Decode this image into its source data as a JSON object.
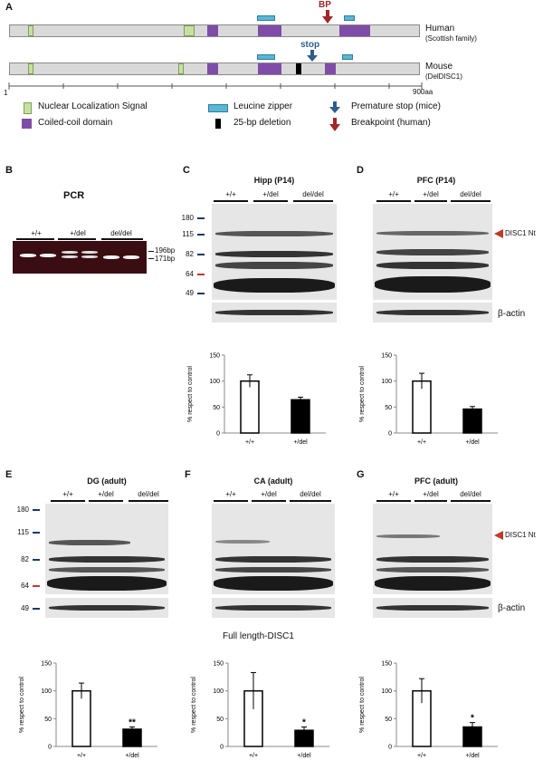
{
  "panels": {
    "a": "A",
    "b": "B",
    "c": "C",
    "d": "D",
    "e": "E",
    "f": "F",
    "g": "G"
  },
  "panelA": {
    "human_label": "Human",
    "human_sub": "(Scottish family)",
    "mouse_label": "Mouse",
    "mouse_sub": "(DelDISC1)",
    "bp_label": "BP",
    "stop_label": "stop",
    "scale_start": "1",
    "scale_end": "900aa",
    "legend": {
      "nls": "Nuclear Localization Signal",
      "cc": "Coiled-coil domain",
      "lz": "Leucine zipper",
      "del": "25-bp deletion",
      "stop": "Premature stop (mice)",
      "bp": "Breakpoint (human)"
    },
    "colors": {
      "nls": "#c6e0a4",
      "coiled_coil": "#7f4da8",
      "leucine_zipper": "#5bb7d4",
      "stop_arrow": "#2e5d8e",
      "bp_arrow": "#a0282a"
    }
  },
  "panelB": {
    "title": "PCR",
    "groups": [
      "+/+",
      "+/del",
      "del/del"
    ],
    "bands": [
      "196bp",
      "171bp"
    ]
  },
  "panelC": {
    "title": "Hipp (P14)",
    "groups": [
      "+/+",
      "+/del",
      "del/del"
    ],
    "markers": [
      "180",
      "115",
      "82",
      "64",
      "49"
    ]
  },
  "panelD": {
    "title": "PFC (P14)",
    "groups": [
      "+/+",
      "+/del",
      "del/del"
    ],
    "disc1_label": "DISC1 Nt",
    "actin_label": "β-actin"
  },
  "panelE": {
    "title": "DG (adult)",
    "groups": [
      "+/+",
      "+/del",
      "del/del"
    ],
    "markers": [
      "180",
      "115",
      "82",
      "64",
      "49"
    ]
  },
  "panelF": {
    "title": "CA (adult)",
    "groups": [
      "+/+",
      "+/del",
      "del/del"
    ],
    "subtitle": "Full length-DISC1"
  },
  "panelG": {
    "title": "PFC (adult)",
    "groups": [
      "+/+",
      "+/del",
      "del/del"
    ],
    "disc1_label": "DISC1 Nt",
    "actin_label": "β-actin"
  },
  "chart_data": [
    {
      "id": "C",
      "type": "bar",
      "categories": [
        "+/+",
        "+/del"
      ],
      "values": [
        100,
        64
      ],
      "errors": [
        12,
        5
      ],
      "ylabel": "% respect to control",
      "ylim": [
        0,
        150
      ],
      "yticks": [
        "0",
        "50",
        "100",
        "150"
      ],
      "significance": [
        "",
        ""
      ]
    },
    {
      "id": "D",
      "type": "bar",
      "categories": [
        "+/+",
        "+/del"
      ],
      "values": [
        100,
        46
      ],
      "errors": [
        15,
        5
      ],
      "ylabel": "% respect to control",
      "ylim": [
        0,
        150
      ],
      "yticks": [
        "0",
        "50",
        "100",
        "150"
      ],
      "significance": [
        "",
        ""
      ]
    },
    {
      "id": "E",
      "type": "bar",
      "categories": [
        "+/+",
        "+/del"
      ],
      "values": [
        100,
        31
      ],
      "errors": [
        14,
        4
      ],
      "ylabel": "% respect to control",
      "ylim": [
        0,
        150
      ],
      "yticks": [
        "0",
        "50",
        "100",
        "150"
      ],
      "significance": [
        "",
        "**"
      ]
    },
    {
      "id": "F",
      "type": "bar",
      "categories": [
        "+/+",
        "+/del"
      ],
      "values": [
        100,
        29
      ],
      "errors": [
        33,
        6
      ],
      "ylabel": "% respect to control",
      "ylim": [
        0,
        150
      ],
      "yticks": [
        "0",
        "50",
        "100",
        "150"
      ],
      "significance": [
        "",
        "*"
      ]
    },
    {
      "id": "G",
      "type": "bar",
      "categories": [
        "+/+",
        "+/del"
      ],
      "values": [
        100,
        35
      ],
      "errors": [
        22,
        8
      ],
      "ylabel": "% respect to control",
      "ylim": [
        0,
        150
      ],
      "yticks": [
        "0",
        "50",
        "100",
        "150"
      ],
      "significance": [
        "",
        "*"
      ]
    }
  ]
}
